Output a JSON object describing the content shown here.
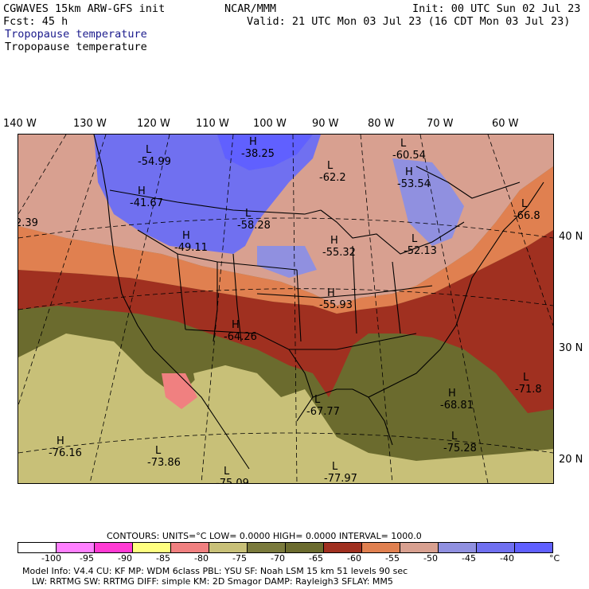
{
  "header": {
    "model": "CGWAVES 15km ARW-GFS init",
    "fcst": "Fcst:   45 h",
    "org": "NCAR/MMM",
    "init": "Init: 00 UTC Sun 02 Jul 23",
    "valid": "Valid: 21 UTC Mon 03 Jul 23 (16 CDT Mon 03 Jul 23)",
    "field_blue": "Tropopause temperature",
    "field_black": "Tropopause temperature"
  },
  "axes": {
    "lon_labels": [
      "140 W",
      "130 W",
      "120 W",
      "110 W",
      "100 W",
      "90 W",
      "80 W",
      "70 W",
      "60 W"
    ],
    "lat_labels": [
      "40 N",
      "30 N",
      "20 N"
    ]
  },
  "map_labels": [
    {
      "letter": "L",
      "value": "-54.99"
    },
    {
      "letter": "H",
      "value": "-38.25"
    },
    {
      "letter": "L",
      "value": "-60.54"
    },
    {
      "letter": "L",
      "value": "-62.2"
    },
    {
      "letter": "H",
      "value": "-53.54"
    },
    {
      "letter": "H",
      "value": "-41.67"
    },
    {
      "letter": "L",
      "value": "-58.28"
    },
    {
      "letter": "L",
      "value": "-66.8"
    },
    {
      "letter": "",
      "value": "2.39"
    },
    {
      "letter": "H",
      "value": "-49.11"
    },
    {
      "letter": "H",
      "value": "-55.32"
    },
    {
      "letter": "L",
      "value": "-52.13"
    },
    {
      "letter": "H",
      "value": "-55.93"
    },
    {
      "letter": "H",
      "value": "-64.26"
    },
    {
      "letter": "L",
      "value": "-71.8"
    },
    {
      "letter": "H",
      "value": "-68.81"
    },
    {
      "letter": "L",
      "value": "-67.77"
    },
    {
      "letter": "L",
      "value": "-75.28"
    },
    {
      "letter": "H",
      "value": "-76.16"
    },
    {
      "letter": "L",
      "value": "-73.86"
    },
    {
      "letter": "L",
      "value": "-75.09"
    },
    {
      "letter": "L",
      "value": "-77.97"
    }
  ],
  "contours": {
    "text": "CONTOURS:  UNITS=°C  LOW=  0.0000       HIGH=  0.0000       INTERVAL=   1000.0"
  },
  "legend": {
    "colors": [
      "#ffffff",
      "#ff80ff",
      "#ff3ad4",
      "#ffff80",
      "#f08080",
      "#c8c078",
      "#7a7a3c",
      "#6b6b2e",
      "#a03020",
      "#e08050",
      "#d8a090",
      "#9090e0",
      "#7070f0",
      "#6060ff"
    ],
    "ticks": [
      "-100",
      "-95",
      "-90",
      "-85",
      "-80",
      "-75",
      "-70",
      "-65",
      "-60",
      "-55",
      "-50",
      "-45",
      "-40"
    ],
    "unit": "°C"
  },
  "footer": {
    "line1": "Model Info: V4.4       CU: KF        MP: WDM 6class   PBL: YSU        SF: Noah LSM     15 km    51 levels    90 sec",
    "line2": "LW: RRTMG      SW: RRTMG    DIFF: simple KM: 2D Smagor DAMP: Rayleigh3   SFLAY: MM5"
  }
}
